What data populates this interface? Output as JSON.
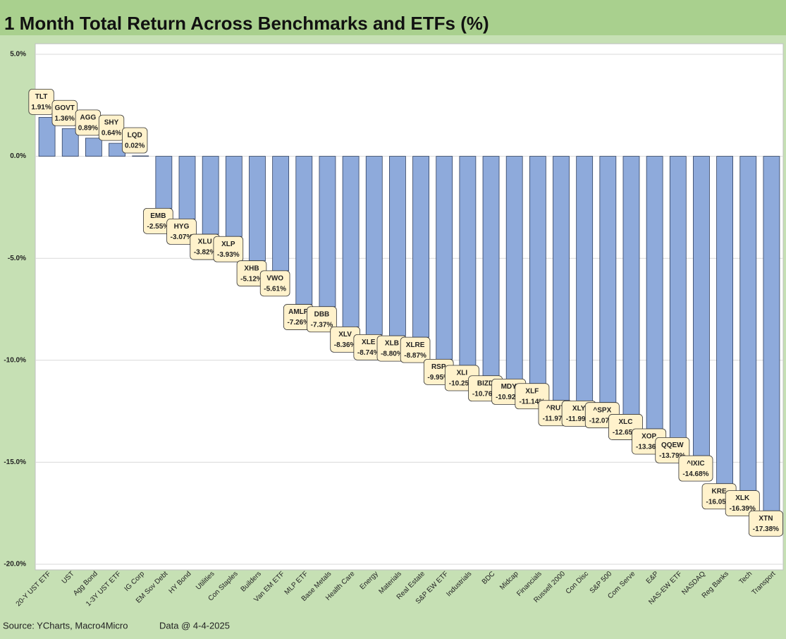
{
  "chart_data": {
    "type": "bar",
    "title": "1 Month Total Return Across Benchmarks and ETFs (%)",
    "categories": [
      "20-Y UST ETF",
      "UST",
      "Agg Bond",
      "1-3Y UST ETF",
      "IG Corp",
      "EM Sov Debt",
      "HY Bond",
      "Utilities",
      "Con Staples",
      "Builders",
      "Van EM ETF",
      "MLP ETF",
      "Base Metals",
      "Health Care",
      "Energy",
      "Materials",
      "Real Estate",
      "S&P EW ETF",
      "Industrials",
      "BDC",
      "Midcap",
      "Financials",
      "Russell 2000",
      "Con Disc",
      "S&P 500",
      "Com Serve",
      "E&P",
      "NAS-EW ETF",
      "NASDAQ",
      "Reg Banks",
      "Tech",
      "Transport"
    ],
    "tickers": [
      "TLT",
      "GOVT",
      "AGG",
      "SHY",
      "LQD",
      "EMB",
      "HYG",
      "XLU",
      "XLP",
      "XHB",
      "VWO",
      "AMLP",
      "DBB",
      "XLV",
      "XLE",
      "XLB",
      "XLRE",
      "RSP",
      "XLI",
      "BIZD",
      "MDY",
      "XLF",
      "^RUT",
      "XLY",
      "^SPX",
      "XLC",
      "XOP",
      "QQEW",
      "^IXIC",
      "KRE",
      "XLK",
      "XTN"
    ],
    "values": [
      1.91,
      1.36,
      0.89,
      0.64,
      0.02,
      -2.55,
      -3.07,
      -3.82,
      -3.93,
      -5.12,
      -5.61,
      -7.26,
      -7.37,
      -8.36,
      -8.74,
      -8.8,
      -8.87,
      -9.95,
      -10.25,
      -10.76,
      -10.92,
      -11.14,
      -11.97,
      -11.99,
      -12.07,
      -12.65,
      -13.36,
      -13.79,
      -14.68,
      -16.05,
      -16.39,
      -17.38
    ],
    "value_labels": [
      "1.91%",
      "1.36%",
      "0.89%",
      "0.64%",
      "0.02%",
      "-2.55%",
      "-3.07%",
      "-3.82%",
      "-3.93%",
      "-5.12%",
      "-5.61%",
      "-7.26%",
      "-7.37%",
      "-8.36%",
      "-8.74%",
      "-8.80%",
      "-8.87%",
      "-9.95%",
      "-10.25%",
      "-10.76%",
      "-10.92%",
      "-11.14%",
      "-11.97%",
      "-11.99%",
      "-12.07%",
      "-12.65%",
      "-13.36%",
      "-13.79%",
      "-14.68%",
      "-16.05%",
      "-16.39%",
      "-17.38%"
    ],
    "color": "#8eaadb",
    "ylim": [
      -20,
      5
    ],
    "yticks": [
      {
        "value": 5,
        "label": "5.0%"
      },
      {
        "value": 0,
        "label": "0.0%"
      },
      {
        "value": -5,
        "label": "-5.0%"
      },
      {
        "value": -10,
        "label": "-10.0%"
      },
      {
        "value": -15,
        "label": "-15.0%"
      },
      {
        "value": -20,
        "label": "-20.0%"
      }
    ],
    "grid": true,
    "source": "Source: YCharts, Macro4Micro",
    "date_note": "Data @ 4-4-2025"
  }
}
